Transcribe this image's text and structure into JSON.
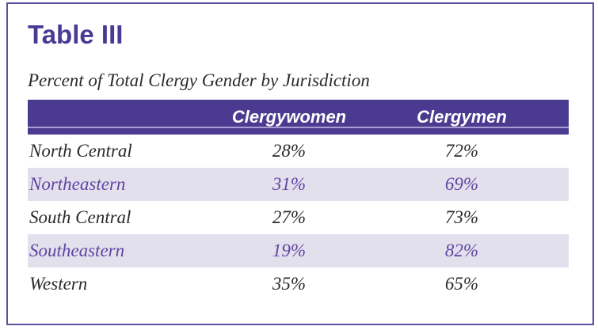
{
  "header": {
    "title": "Table III",
    "subtitle": "Percent of Total Clergy Gender by Jurisdiction"
  },
  "chart_data": {
    "type": "table",
    "title": "Table III",
    "subtitle": "Percent of Total Clergy Gender by Jurisdiction",
    "columns": {
      "c1": "",
      "c2": "Clergywomen",
      "c3": "Clergymen"
    },
    "rows": [
      {
        "name": "North Central",
        "clergywomen": "28%",
        "clergymen": "72%",
        "highlight": false
      },
      {
        "name": "Northeastern",
        "clergywomen": "31%",
        "clergymen": "69%",
        "highlight": true
      },
      {
        "name": "South Central",
        "clergywomen": "27%",
        "clergymen": "73%",
        "highlight": false
      },
      {
        "name": "Southeastern",
        "clergywomen": "19%",
        "clergymen": "82%",
        "highlight": true
      },
      {
        "name": "Western",
        "clergywomen": "35%",
        "clergymen": "65%",
        "highlight": false
      }
    ],
    "series": [
      {
        "name": "Clergywomen",
        "values": [
          28,
          31,
          27,
          19,
          35
        ]
      },
      {
        "name": "Clergymen",
        "values": [
          72,
          69,
          73,
          82,
          65
        ]
      }
    ],
    "categories": [
      "North Central",
      "Northeastern",
      "South Central",
      "Southeastern",
      "Western"
    ]
  },
  "colors": {
    "header_bar_purple": "#4b3b90",
    "border_purple": "#5d4f9e",
    "title_purple": "#483a95",
    "row_highlight_bg": "#e3e0ee",
    "row_highlight_text": "#5f45a0",
    "body_text": "#2d2b2a",
    "header_divider": "#a89cd2",
    "header_text": "#ffffff"
  }
}
